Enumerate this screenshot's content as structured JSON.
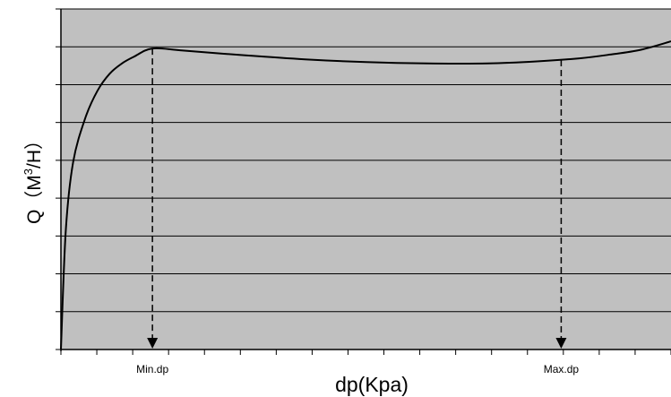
{
  "chart_data": {
    "type": "line",
    "ylabel_main": "Q（M",
    "ylabel_sup": "3",
    "ylabel_tail": "/H）",
    "xlabel": "dp(Kpa)",
    "grid": true,
    "colors": {
      "plot_bg": "#c0c0c0",
      "line": "#000000",
      "grid": "#000000"
    },
    "xlim": [
      0,
      100
    ],
    "ylim": [
      0,
      100
    ],
    "series": [
      {
        "values": [
          {
            "x": 0.0,
            "y": 0.0
          },
          {
            "x": 0.8,
            "y": 35
          },
          {
            "x": 2.0,
            "y": 55
          },
          {
            "x": 4.0,
            "y": 68
          },
          {
            "x": 6.0,
            "y": 76
          },
          {
            "x": 8.0,
            "y": 81
          },
          {
            "x": 10.0,
            "y": 84
          },
          {
            "x": 12.0,
            "y": 86
          },
          {
            "x": 15.0,
            "y": 88.4
          },
          {
            "x": 20.0,
            "y": 87.8
          },
          {
            "x": 30.0,
            "y": 86.4
          },
          {
            "x": 40.0,
            "y": 85.2
          },
          {
            "x": 50.0,
            "y": 84.4
          },
          {
            "x": 60.0,
            "y": 84.0
          },
          {
            "x": 70.0,
            "y": 84.0
          },
          {
            "x": 78.0,
            "y": 84.6
          },
          {
            "x": 85.0,
            "y": 85.5
          },
          {
            "x": 90.0,
            "y": 86.6
          },
          {
            "x": 95.0,
            "y": 88.0
          },
          {
            "x": 100.0,
            "y": 90.5
          }
        ]
      }
    ],
    "markers": [
      {
        "label": "Min.dp",
        "x": 15.0,
        "y": 88.4
      },
      {
        "label": "Max.dp",
        "x": 82.0,
        "y": 85.0
      }
    ]
  }
}
